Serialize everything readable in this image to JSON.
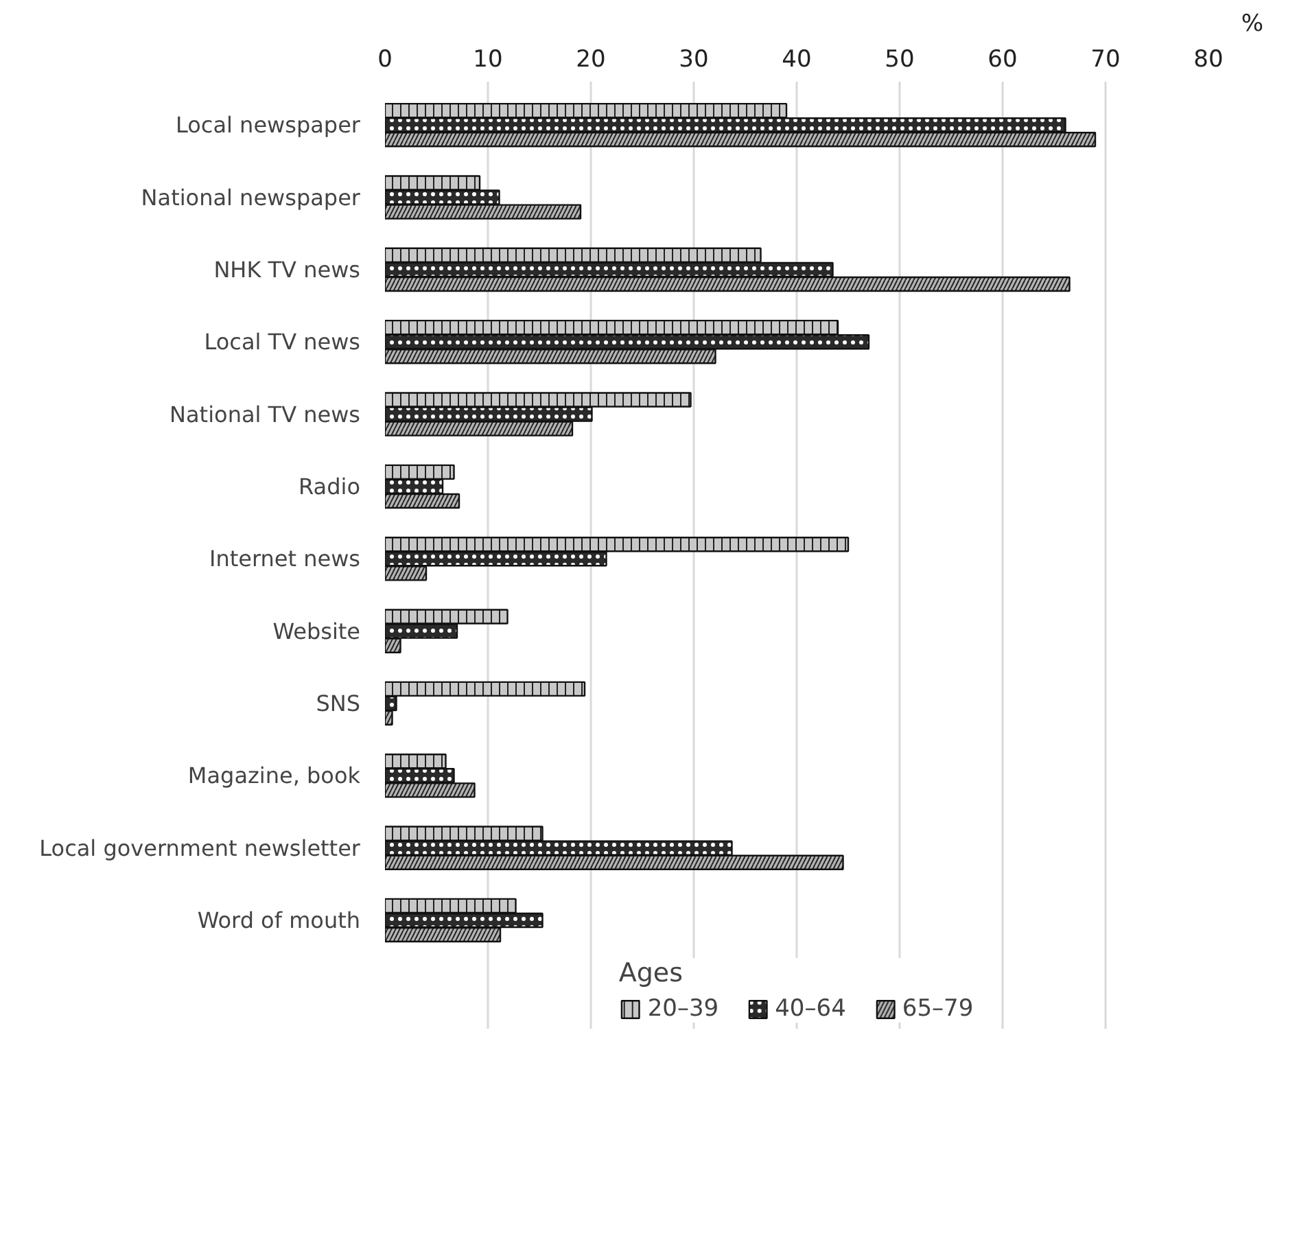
{
  "chart_data": {
    "type": "bar",
    "orientation": "horizontal",
    "xlabel": "%",
    "legend_title": "Ages",
    "legend": "bottom",
    "grid": "x",
    "categories": [
      "Local newspaper",
      "National newspaper",
      "NHK TV news",
      "Local TV news",
      "National TV news",
      "Radio",
      "Internet news",
      "Website",
      "SNS",
      "Magazine, book",
      "Local government newsletter",
      "Word of mouth"
    ],
    "xlim": [
      0,
      80
    ],
    "xticks": [
      0,
      10,
      20,
      30,
      40,
      50,
      60,
      70,
      80
    ],
    "series": [
      {
        "name": "20–39",
        "color": "#c8c8c8",
        "values": [
          39,
          9.2,
          36.5,
          44,
          29.7,
          6.7,
          45,
          11.9,
          19.4,
          5.9,
          15.3,
          12.7
        ]
      },
      {
        "name": "40–64",
        "color": "#2a2a2a",
        "values": [
          66.1,
          11.1,
          43.5,
          47,
          20.1,
          5.6,
          21.5,
          7,
          1.1,
          6.7,
          33.7,
          15.3
        ]
      },
      {
        "name": "65–79",
        "color": "#b4b4b4",
        "values": [
          69,
          19,
          66.5,
          32.1,
          18.2,
          7.2,
          4,
          1.5,
          0.7,
          8.7,
          44.5,
          11.2
        ]
      }
    ]
  }
}
